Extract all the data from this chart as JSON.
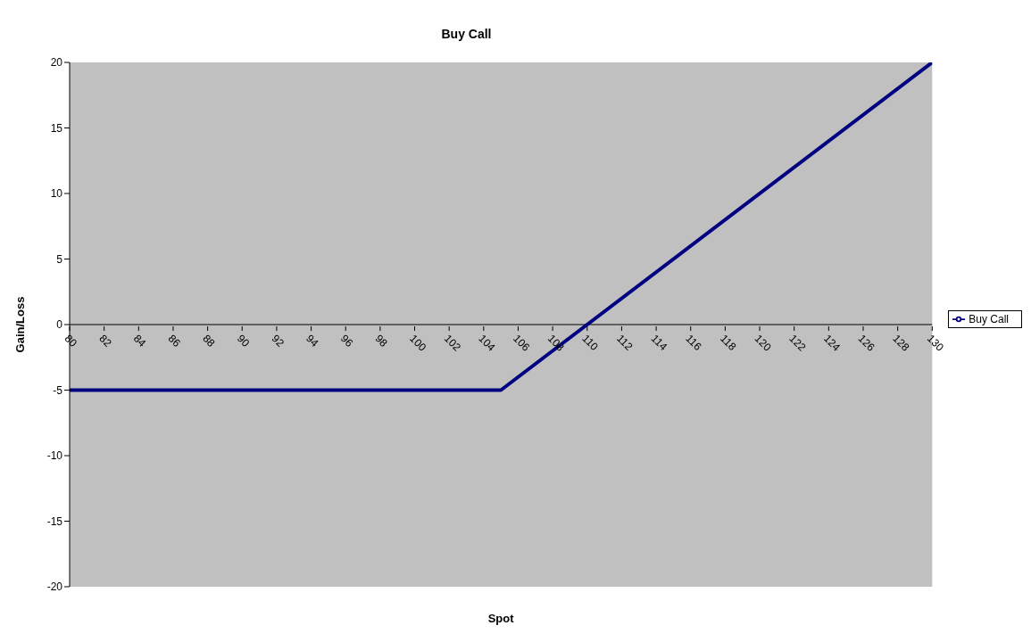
{
  "chart_data": {
    "type": "line",
    "title": "Buy Call",
    "xlabel": "Spot",
    "ylabel": "Gain/Loss",
    "x": [
      80,
      105,
      130
    ],
    "series": [
      {
        "name": "Buy Call",
        "color": "#000080",
        "values": [
          -5,
          -5,
          20
        ]
      }
    ],
    "xlim": [
      80,
      130
    ],
    "xticks": [
      80,
      82,
      84,
      86,
      88,
      90,
      92,
      94,
      96,
      98,
      100,
      102,
      104,
      106,
      108,
      110,
      112,
      114,
      116,
      118,
      120,
      122,
      124,
      126,
      128,
      130
    ],
    "ylim": [
      -20,
      20
    ],
    "yticks": [
      -20,
      -15,
      -10,
      -5,
      0,
      5,
      10,
      15,
      20
    ],
    "grid": false,
    "legend": "right",
    "marker": "none",
    "line_style": "solid"
  }
}
